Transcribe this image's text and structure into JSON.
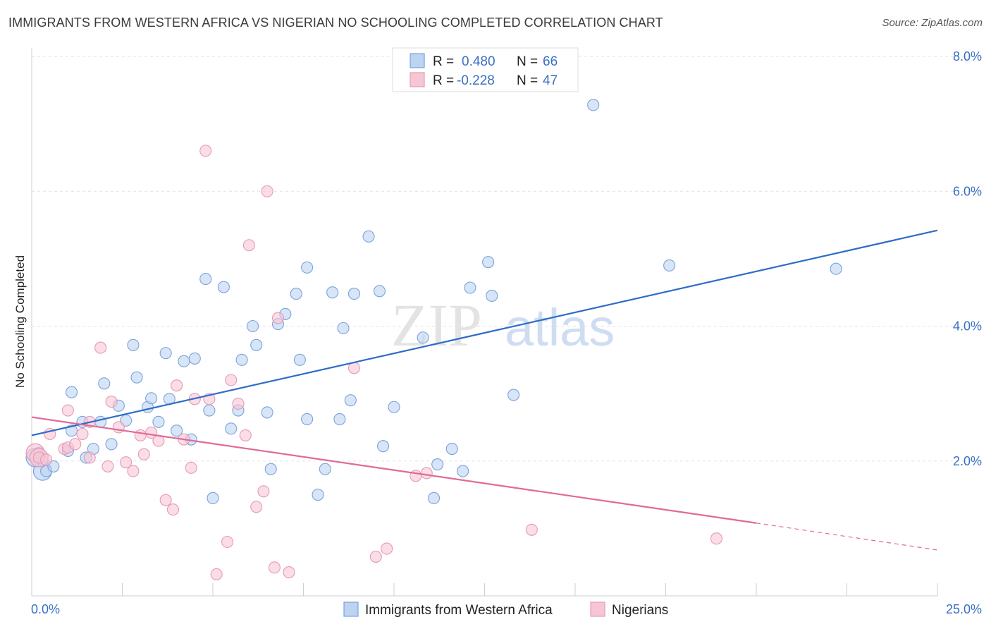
{
  "chart_data": {
    "type": "scatter",
    "title": "IMMIGRANTS FROM WESTERN AFRICA VS NIGERIAN NO SCHOOLING COMPLETED CORRELATION CHART",
    "source": "Source: ZipAtlas.com",
    "watermark": {
      "zip": "ZIP",
      "atlas": "atlas"
    },
    "xlabel": "",
    "ylabel": "No Schooling Completed",
    "xlim": [
      0,
      25
    ],
    "ylim": [
      0,
      8
    ],
    "x_tick_labels": {
      "min": "0.0%",
      "max": "25.0%"
    },
    "y_ticks": [
      {
        "value": 2,
        "label": "2.0%"
      },
      {
        "value": 4,
        "label": "4.0%"
      },
      {
        "value": 6,
        "label": "6.0%"
      },
      {
        "value": 8,
        "label": "8.0%"
      }
    ],
    "legend": {
      "r_label": "R =",
      "n_label": "N =",
      "entries": [
        {
          "r": "0.480",
          "n": "66"
        },
        {
          "r": "-0.228",
          "n": "47"
        }
      ]
    },
    "colors": {
      "blue_fill": "#bcd3f2",
      "blue_stroke": "#7aa3dc",
      "blue_line": "#2f6cc8",
      "pink_fill": "#f7c6d6",
      "pink_stroke": "#e899b4",
      "pink_line": "#e06a96",
      "tick_text": "#3a6fc4",
      "grid": "#e2e2e2"
    },
    "series": [
      {
        "name": "Immigrants from Western Africa",
        "trend": {
          "x0": 0,
          "y0": 2.38,
          "x1": 25,
          "y1": 5.42
        },
        "points": [
          [
            0.3,
            2.0
          ],
          [
            0.4,
            1.85
          ],
          [
            0.6,
            1.92
          ],
          [
            1.0,
            2.15
          ],
          [
            1.1,
            2.45
          ],
          [
            1.1,
            3.02
          ],
          [
            1.4,
            2.58
          ],
          [
            1.5,
            2.05
          ],
          [
            1.7,
            2.18
          ],
          [
            1.9,
            2.58
          ],
          [
            2.0,
            3.15
          ],
          [
            2.2,
            2.25
          ],
          [
            2.4,
            2.82
          ],
          [
            2.6,
            2.6
          ],
          [
            2.8,
            3.72
          ],
          [
            2.9,
            3.24
          ],
          [
            3.2,
            2.8
          ],
          [
            3.3,
            2.93
          ],
          [
            3.5,
            2.58
          ],
          [
            3.7,
            3.6
          ],
          [
            3.8,
            2.92
          ],
          [
            4.0,
            2.45
          ],
          [
            4.2,
            3.48
          ],
          [
            4.4,
            2.32
          ],
          [
            4.5,
            3.52
          ],
          [
            4.8,
            4.7
          ],
          [
            4.9,
            2.75
          ],
          [
            5.0,
            1.45
          ],
          [
            5.3,
            4.58
          ],
          [
            5.5,
            2.48
          ],
          [
            5.7,
            2.75
          ],
          [
            5.8,
            3.5
          ],
          [
            6.1,
            4.0
          ],
          [
            6.2,
            3.72
          ],
          [
            6.5,
            2.72
          ],
          [
            6.6,
            1.88
          ],
          [
            6.8,
            4.03
          ],
          [
            7.0,
            4.18
          ],
          [
            7.3,
            4.48
          ],
          [
            7.4,
            3.5
          ],
          [
            7.6,
            4.87
          ],
          [
            7.6,
            2.62
          ],
          [
            7.9,
            1.5
          ],
          [
            8.1,
            1.88
          ],
          [
            8.3,
            4.5
          ],
          [
            8.5,
            2.62
          ],
          [
            8.6,
            3.97
          ],
          [
            8.8,
            2.9
          ],
          [
            8.9,
            4.48
          ],
          [
            9.3,
            5.33
          ],
          [
            9.6,
            4.52
          ],
          [
            9.7,
            2.22
          ],
          [
            10.0,
            2.8
          ],
          [
            10.8,
            3.83
          ],
          [
            11.1,
            1.45
          ],
          [
            11.2,
            1.95
          ],
          [
            11.6,
            2.18
          ],
          [
            11.9,
            1.85
          ],
          [
            12.1,
            4.57
          ],
          [
            12.6,
            4.95
          ],
          [
            12.7,
            4.45
          ],
          [
            13.3,
            2.98
          ],
          [
            15.5,
            7.28
          ],
          [
            17.6,
            4.9
          ],
          [
            22.2,
            4.85
          ],
          [
            0.2,
            2.12
          ]
        ],
        "large": [
          [
            0.3,
            1.85
          ],
          [
            0.1,
            2.05
          ]
        ]
      },
      {
        "name": "Nigerians",
        "trend": {
          "x0": 0,
          "y0": 2.65,
          "x1": 20,
          "y1": 1.08,
          "dash_x1": 25,
          "dash_y1": 0.68
        },
        "points": [
          [
            0.2,
            2.05
          ],
          [
            0.4,
            2.02
          ],
          [
            0.5,
            2.4
          ],
          [
            0.9,
            2.18
          ],
          [
            1.0,
            2.2
          ],
          [
            1.0,
            2.75
          ],
          [
            1.2,
            2.25
          ],
          [
            1.4,
            2.4
          ],
          [
            1.6,
            2.05
          ],
          [
            1.6,
            2.58
          ],
          [
            1.9,
            3.68
          ],
          [
            2.1,
            1.92
          ],
          [
            2.2,
            2.88
          ],
          [
            2.4,
            2.5
          ],
          [
            2.6,
            1.98
          ],
          [
            2.8,
            1.85
          ],
          [
            3.0,
            2.38
          ],
          [
            3.1,
            2.1
          ],
          [
            3.3,
            2.42
          ],
          [
            3.5,
            2.3
          ],
          [
            3.7,
            1.42
          ],
          [
            3.9,
            1.28
          ],
          [
            4.0,
            3.12
          ],
          [
            4.2,
            2.32
          ],
          [
            4.4,
            1.9
          ],
          [
            4.5,
            2.92
          ],
          [
            4.8,
            6.6
          ],
          [
            4.9,
            2.92
          ],
          [
            5.1,
            0.32
          ],
          [
            5.4,
            0.8
          ],
          [
            5.5,
            3.2
          ],
          [
            5.7,
            2.85
          ],
          [
            5.9,
            2.38
          ],
          [
            6.0,
            5.2
          ],
          [
            6.2,
            1.32
          ],
          [
            6.4,
            1.55
          ],
          [
            6.5,
            6.0
          ],
          [
            6.7,
            0.42
          ],
          [
            6.8,
            4.12
          ],
          [
            7.1,
            0.35
          ],
          [
            8.9,
            3.38
          ],
          [
            9.5,
            0.58
          ],
          [
            9.8,
            0.7
          ],
          [
            10.6,
            1.78
          ],
          [
            10.9,
            1.82
          ],
          [
            13.8,
            0.98
          ],
          [
            18.9,
            0.85
          ]
        ],
        "large": [
          [
            0.1,
            2.12
          ],
          [
            0.2,
            2.05
          ]
        ]
      }
    ]
  }
}
